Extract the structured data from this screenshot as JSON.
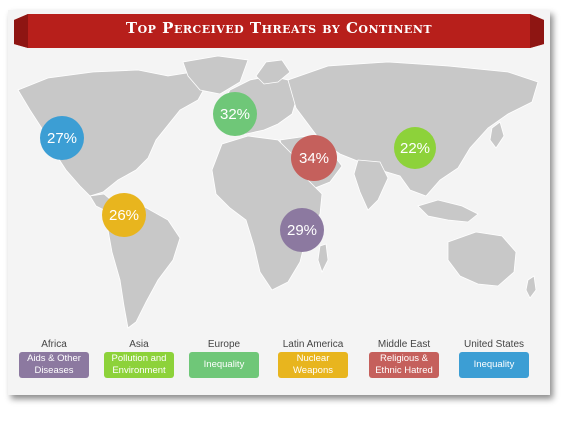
{
  "title": "Top Perceived Threats by Continent",
  "colors": {
    "banner": "#b71f1b",
    "land": "#c8c8c8",
    "paper": "#f4f4f4",
    "africa": "#8c79a0",
    "asia": "#8dd23a",
    "europe": "#6fc778",
    "latin_america": "#e8b51e",
    "middle_east": "#c5605c",
    "united_states": "#3c9ed4"
  },
  "bubbles": [
    {
      "region": "united_states",
      "label": "27%"
    },
    {
      "region": "europe",
      "label": "32%"
    },
    {
      "region": "middle_east",
      "label": "34%"
    },
    {
      "region": "asia",
      "label": "22%"
    },
    {
      "region": "latin_america",
      "label": "26%"
    },
    {
      "region": "africa",
      "label": "29%"
    }
  ],
  "legend": [
    {
      "region": "africa",
      "name": "Africa",
      "threat": "Aids & Other\nDiseases"
    },
    {
      "region": "asia",
      "name": "Asia",
      "threat": "Pollution and\nEnvironment"
    },
    {
      "region": "europe",
      "name": "Europe",
      "threat": "Inequality"
    },
    {
      "region": "latin_america",
      "name": "Latin America",
      "threat": "Nuclear\nWeapons"
    },
    {
      "region": "middle_east",
      "name": "Middle East",
      "threat": "Religious &\nEthnic Hatred"
    },
    {
      "region": "united_states",
      "name": "United States",
      "threat": "Inequality"
    }
  ]
}
